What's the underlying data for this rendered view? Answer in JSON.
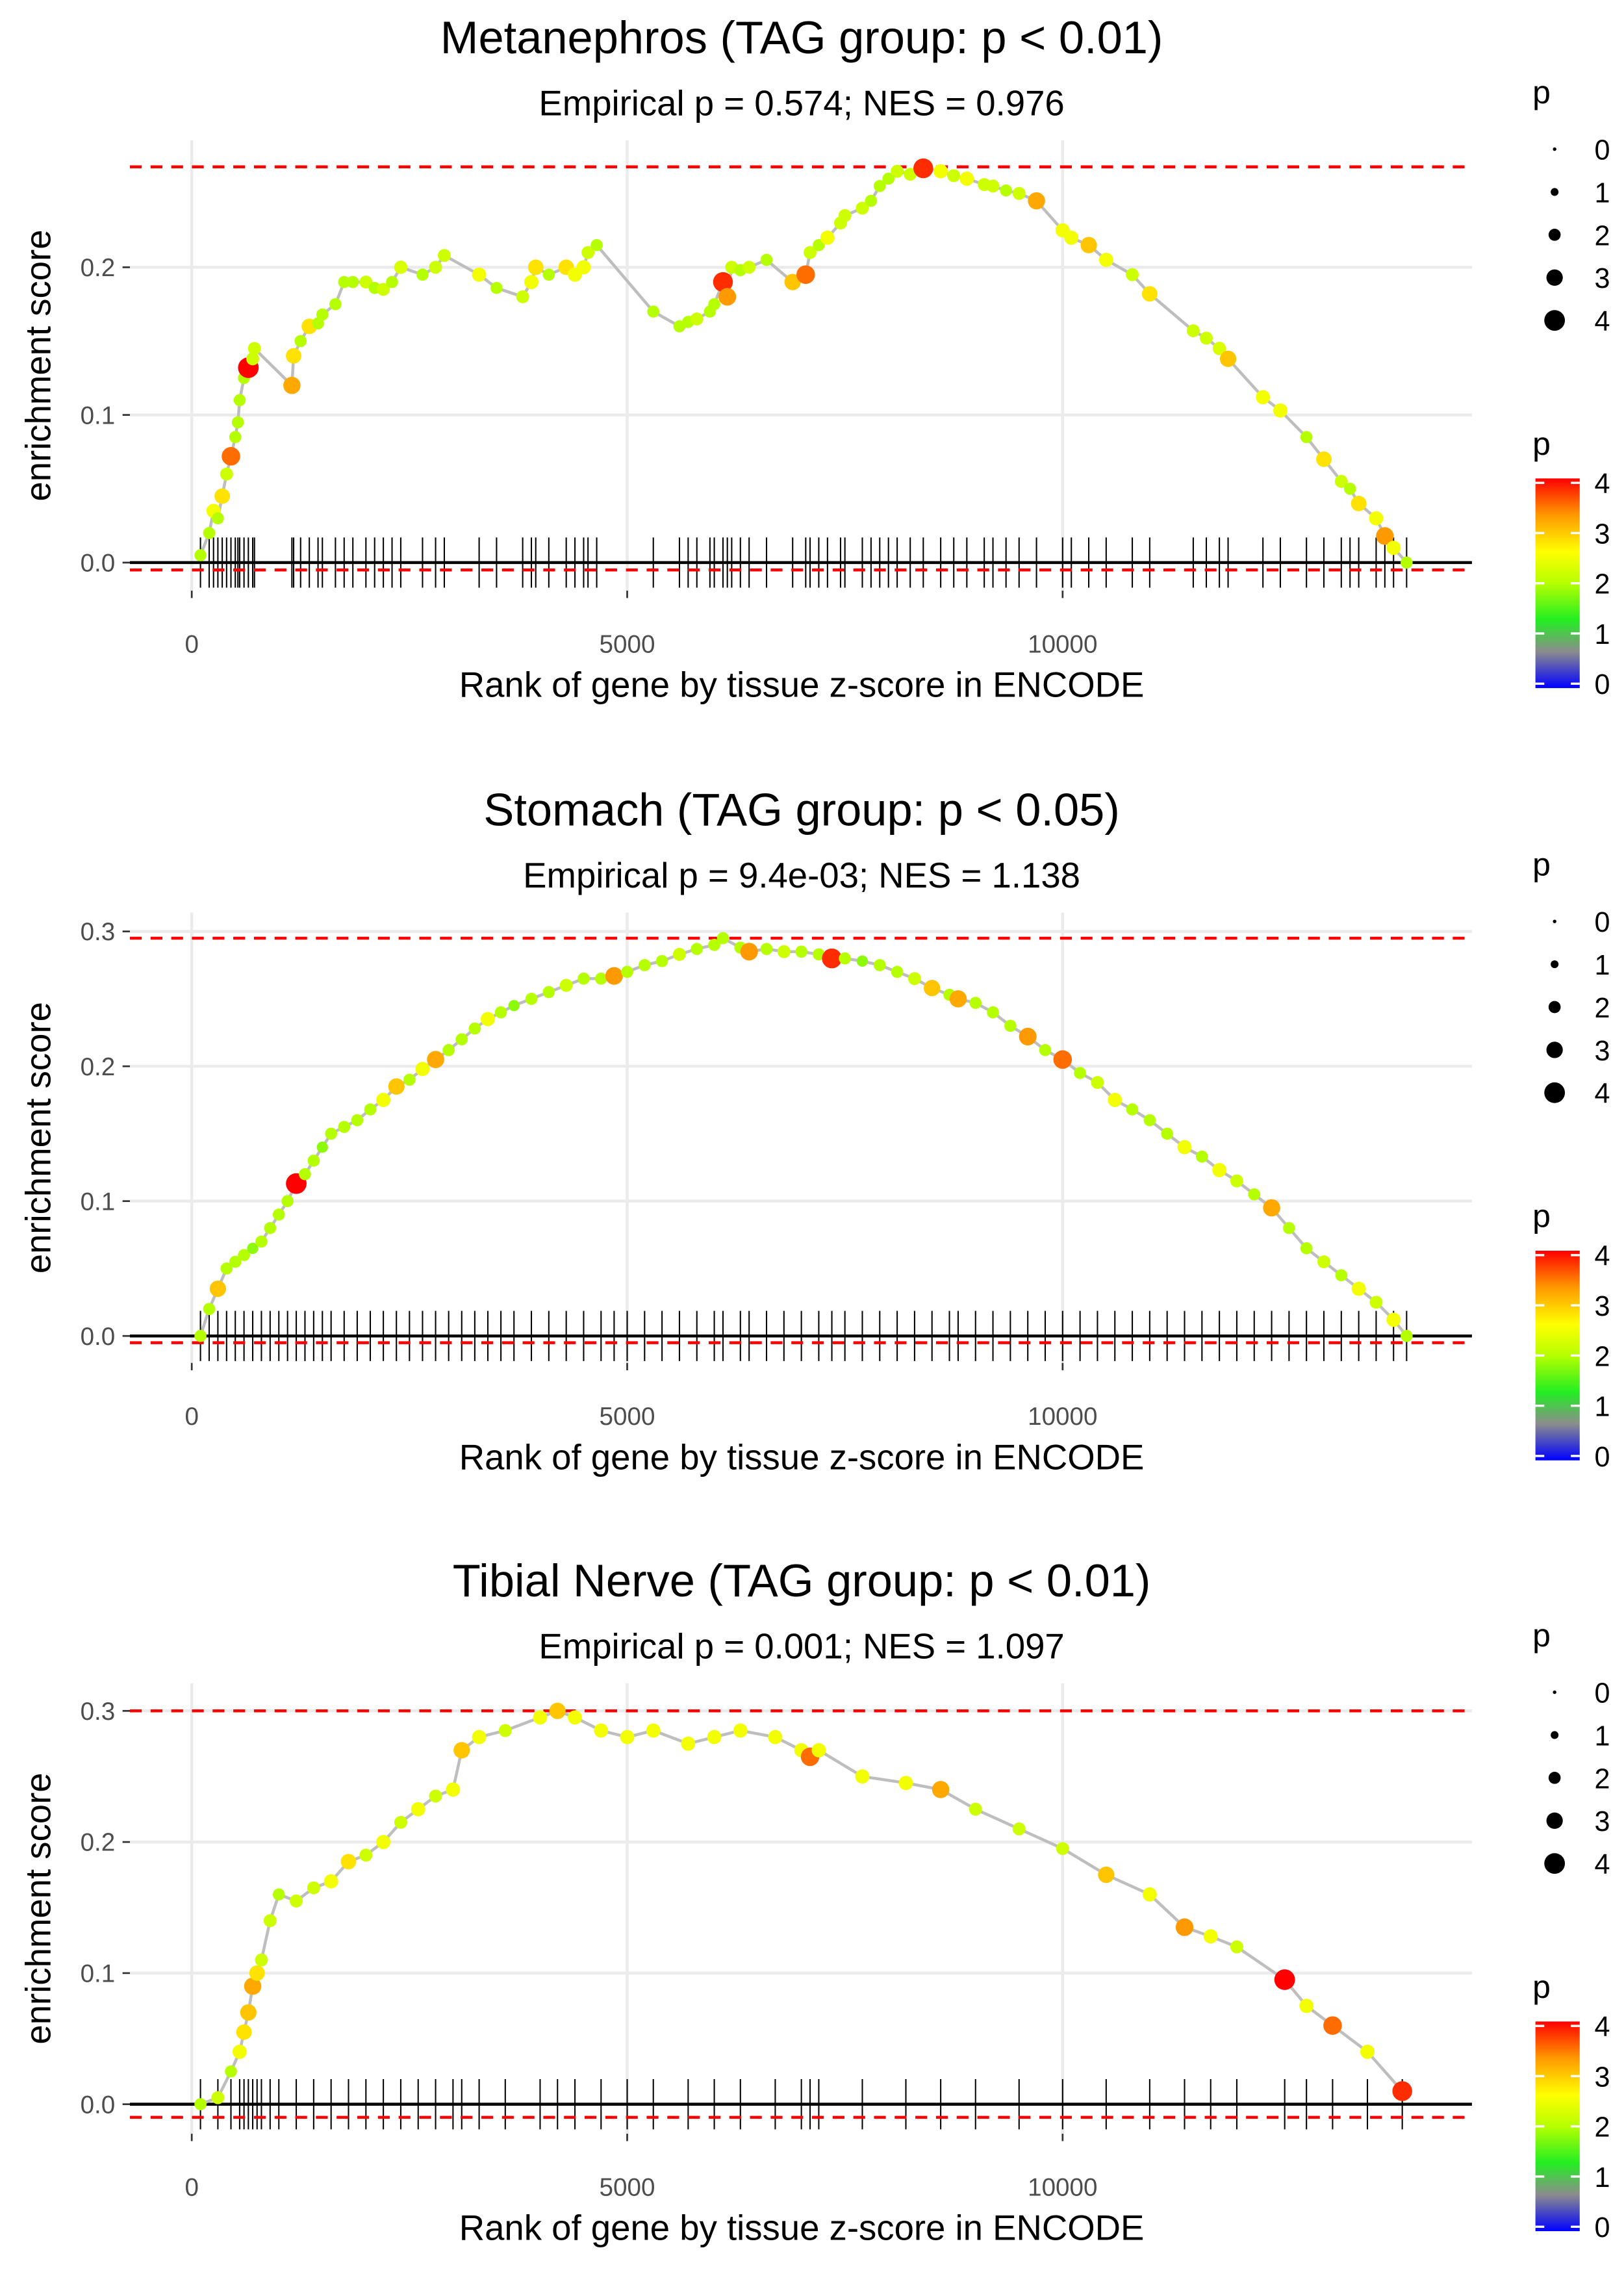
{
  "legend": {
    "size_title": "p",
    "size_values": [
      "0",
      "1",
      "2",
      "3",
      "4"
    ],
    "color_title": "p",
    "color_values": [
      "4",
      "3",
      "2",
      "1",
      "0"
    ],
    "color_stops": [
      [
        "0",
        "#0000ff"
      ],
      [
        "0.7",
        "#8c8c8c"
      ],
      [
        "1.3",
        "#22ee22"
      ],
      [
        "2.0",
        "#b6ff00"
      ],
      [
        "2.6",
        "#ffff00"
      ],
      [
        "3.3",
        "#ff9900"
      ],
      [
        "4",
        "#ff0000"
      ]
    ]
  },
  "colors": {
    "line": "#bebebe",
    "dashed": "#ff0000",
    "zero_line": "#000000",
    "rug": "#000000",
    "grid": "#ebebeb"
  },
  "chart_data": [
    {
      "type": "line",
      "title": "Metanephros (TAG group: p < 0.01)",
      "subtitle": "Empirical p = 0.574; NES = 0.976",
      "xlabel": "Rank of gene by tissue z-score in ENCODE",
      "ylabel": "enrichment score",
      "xticks": [
        "0",
        "5000",
        "10000"
      ],
      "yticks": [
        "0.0",
        "0.1",
        "0.2"
      ],
      "xlim": [
        -710,
        14700
      ],
      "ylim": [
        -0.019,
        0.286
      ],
      "max_es": 0.268,
      "min_es": -0.005,
      "points": [
        [
          100,
          0.005,
          2
        ],
        [
          200,
          0.02,
          2
        ],
        [
          250,
          0.035,
          2.5
        ],
        [
          300,
          0.03,
          2
        ],
        [
          350,
          0.045,
          2.8
        ],
        [
          400,
          0.06,
          2.2
        ],
        [
          450,
          0.072,
          3.5
        ],
        [
          500,
          0.085,
          2
        ],
        [
          530,
          0.095,
          2
        ],
        [
          550,
          0.11,
          2
        ],
        [
          600,
          0.125,
          2
        ],
        [
          650,
          0.132,
          4
        ],
        [
          700,
          0.138,
          2.2
        ],
        [
          720,
          0.145,
          2.2
        ],
        [
          1150,
          0.12,
          3.2
        ],
        [
          1170,
          0.14,
          2.8
        ],
        [
          1250,
          0.15,
          2
        ],
        [
          1350,
          0.16,
          2.8
        ],
        [
          1450,
          0.162,
          2
        ],
        [
          1500,
          0.168,
          2
        ],
        [
          1650,
          0.175,
          2
        ],
        [
          1750,
          0.19,
          2
        ],
        [
          1850,
          0.19,
          2
        ],
        [
          2000,
          0.19,
          2.2
        ],
        [
          2100,
          0.186,
          2
        ],
        [
          2200,
          0.185,
          2.2
        ],
        [
          2300,
          0.19,
          2
        ],
        [
          2400,
          0.2,
          2.3
        ],
        [
          2650,
          0.195,
          2
        ],
        [
          2800,
          0.2,
          2.2
        ],
        [
          2900,
          0.208,
          2.2
        ],
        [
          3300,
          0.195,
          2.5
        ],
        [
          3500,
          0.186,
          2
        ],
        [
          3800,
          0.18,
          2.2
        ],
        [
          3900,
          0.19,
          2.5
        ],
        [
          3950,
          0.2,
          2.8
        ],
        [
          4100,
          0.195,
          2
        ],
        [
          4300,
          0.2,
          2.8
        ],
        [
          4400,
          0.195,
          2.5
        ],
        [
          4500,
          0.2,
          2.5
        ],
        [
          4550,
          0.21,
          2.2
        ],
        [
          4650,
          0.215,
          2
        ],
        [
          5300,
          0.17,
          2
        ],
        [
          5600,
          0.16,
          2
        ],
        [
          5700,
          0.163,
          2
        ],
        [
          5800,
          0.165,
          2.2
        ],
        [
          5950,
          0.17,
          2
        ],
        [
          6000,
          0.175,
          2
        ],
        [
          6100,
          0.19,
          3.8
        ],
        [
          6150,
          0.18,
          3.3
        ],
        [
          6200,
          0.2,
          2.2
        ],
        [
          6300,
          0.198,
          2
        ],
        [
          6400,
          0.2,
          2.2
        ],
        [
          6600,
          0.205,
          2
        ],
        [
          6900,
          0.19,
          3
        ],
        [
          7050,
          0.195,
          3.5
        ],
        [
          7100,
          0.21,
          2.2
        ],
        [
          7200,
          0.215,
          2
        ],
        [
          7300,
          0.22,
          2.5
        ],
        [
          7450,
          0.23,
          2.2
        ],
        [
          7500,
          0.235,
          2.2
        ],
        [
          7700,
          0.24,
          2.2
        ],
        [
          7800,
          0.245,
          2
        ],
        [
          7900,
          0.255,
          2
        ],
        [
          8000,
          0.26,
          2
        ],
        [
          8100,
          0.265,
          2.2
        ],
        [
          8250,
          0.263,
          2.2
        ],
        [
          8400,
          0.267,
          3.8
        ],
        [
          8600,
          0.265,
          2.5
        ],
        [
          8750,
          0.262,
          2.2
        ],
        [
          8900,
          0.26,
          2.5
        ],
        [
          9100,
          0.256,
          2.2
        ],
        [
          9200,
          0.255,
          2.2
        ],
        [
          9350,
          0.252,
          2
        ],
        [
          9500,
          0.25,
          2.2
        ],
        [
          9700,
          0.245,
          3.2
        ],
        [
          10000,
          0.225,
          2.5
        ],
        [
          10100,
          0.22,
          2.5
        ],
        [
          10300,
          0.215,
          3
        ],
        [
          10500,
          0.205,
          2.5
        ],
        [
          10800,
          0.195,
          2.2
        ],
        [
          11000,
          0.182,
          2.8
        ],
        [
          11500,
          0.157,
          2.2
        ],
        [
          11650,
          0.152,
          2.2
        ],
        [
          11800,
          0.145,
          2.3
        ],
        [
          11900,
          0.138,
          3
        ],
        [
          12300,
          0.112,
          2.5
        ],
        [
          12500,
          0.103,
          2.5
        ],
        [
          12800,
          0.085,
          2
        ],
        [
          13000,
          0.07,
          2.8
        ],
        [
          13200,
          0.055,
          2.2
        ],
        [
          13300,
          0.05,
          2
        ],
        [
          13400,
          0.04,
          2.8
        ],
        [
          13600,
          0.03,
          2.5
        ],
        [
          13700,
          0.018,
          3.3
        ],
        [
          13800,
          0.01,
          2.5
        ],
        [
          13950,
          0,
          2
        ]
      ]
    },
    {
      "type": "line",
      "title": "Stomach (TAG group: p < 0.05)",
      "subtitle": "Empirical p = 9.4e-03; NES = 1.138",
      "xlabel": "Rank of gene by tissue z-score in ENCODE",
      "ylabel": "enrichment score",
      "xticks": [
        "0",
        "5000",
        "10000"
      ],
      "yticks": [
        "0.0",
        "0.1",
        "0.2",
        "0.3"
      ],
      "xlim": [
        -710,
        14700
      ],
      "ylim": [
        -0.02,
        0.314
      ],
      "max_es": 0.295,
      "min_es": -0.005,
      "points": [
        [
          100,
          0,
          2
        ],
        [
          200,
          0.02,
          2
        ],
        [
          300,
          0.035,
          3
        ],
        [
          400,
          0.05,
          2
        ],
        [
          500,
          0.055,
          2
        ],
        [
          600,
          0.06,
          2
        ],
        [
          700,
          0.065,
          1.8
        ],
        [
          800,
          0.07,
          2
        ],
        [
          900,
          0.08,
          2
        ],
        [
          1000,
          0.09,
          2
        ],
        [
          1100,
          0.1,
          2
        ],
        [
          1200,
          0.113,
          4
        ],
        [
          1300,
          0.12,
          2
        ],
        [
          1400,
          0.13,
          2
        ],
        [
          1500,
          0.14,
          1.8
        ],
        [
          1600,
          0.15,
          2
        ],
        [
          1750,
          0.155,
          2
        ],
        [
          1900,
          0.16,
          2
        ],
        [
          2050,
          0.168,
          2
        ],
        [
          2200,
          0.175,
          2.5
        ],
        [
          2350,
          0.185,
          3
        ],
        [
          2500,
          0.19,
          2
        ],
        [
          2650,
          0.198,
          2.5
        ],
        [
          2800,
          0.205,
          3.2
        ],
        [
          2950,
          0.212,
          2
        ],
        [
          3100,
          0.22,
          2
        ],
        [
          3250,
          0.228,
          2
        ],
        [
          3400,
          0.235,
          2.5
        ],
        [
          3550,
          0.24,
          2
        ],
        [
          3700,
          0.245,
          1.8
        ],
        [
          3900,
          0.25,
          2
        ],
        [
          4100,
          0.255,
          2
        ],
        [
          4300,
          0.26,
          2.2
        ],
        [
          4500,
          0.265,
          2
        ],
        [
          4700,
          0.265,
          2
        ],
        [
          4850,
          0.267,
          3.3
        ],
        [
          5000,
          0.27,
          2
        ],
        [
          5200,
          0.275,
          2
        ],
        [
          5400,
          0.278,
          2
        ],
        [
          5600,
          0.283,
          2.2
        ],
        [
          5800,
          0.287,
          2
        ],
        [
          6000,
          0.29,
          2
        ],
        [
          6100,
          0.295,
          2
        ],
        [
          6300,
          0.288,
          2
        ],
        [
          6400,
          0.285,
          3.3
        ],
        [
          6600,
          0.287,
          2
        ],
        [
          6800,
          0.285,
          2.2
        ],
        [
          7000,
          0.285,
          2
        ],
        [
          7200,
          0.283,
          2
        ],
        [
          7350,
          0.28,
          3.8
        ],
        [
          7500,
          0.28,
          2
        ],
        [
          7700,
          0.278,
          1.8
        ],
        [
          7900,
          0.275,
          2
        ],
        [
          8100,
          0.27,
          2
        ],
        [
          8300,
          0.265,
          2.2
        ],
        [
          8500,
          0.258,
          3
        ],
        [
          8700,
          0.253,
          2
        ],
        [
          8800,
          0.25,
          3.2
        ],
        [
          9000,
          0.247,
          2
        ],
        [
          9200,
          0.24,
          2
        ],
        [
          9400,
          0.23,
          2
        ],
        [
          9600,
          0.222,
          3.3
        ],
        [
          9800,
          0.212,
          2
        ],
        [
          10000,
          0.205,
          3.5
        ],
        [
          10200,
          0.195,
          2
        ],
        [
          10400,
          0.188,
          2.2
        ],
        [
          10600,
          0.175,
          2.5
        ],
        [
          10800,
          0.168,
          2
        ],
        [
          11000,
          0.16,
          2
        ],
        [
          11200,
          0.15,
          2
        ],
        [
          11400,
          0.14,
          2.5
        ],
        [
          11600,
          0.133,
          2
        ],
        [
          11800,
          0.123,
          2.5
        ],
        [
          12000,
          0.115,
          2.2
        ],
        [
          12200,
          0.105,
          2
        ],
        [
          12400,
          0.095,
          3.2
        ],
        [
          12600,
          0.08,
          2
        ],
        [
          12800,
          0.065,
          2
        ],
        [
          13000,
          0.055,
          2.2
        ],
        [
          13200,
          0.045,
          2
        ],
        [
          13400,
          0.035,
          2.5
        ],
        [
          13600,
          0.025,
          2.2
        ],
        [
          13800,
          0.012,
          2.5
        ],
        [
          13950,
          0,
          2
        ]
      ]
    },
    {
      "type": "line",
      "title": "Tibial Nerve (TAG group: p < 0.01)",
      "subtitle": "Empirical p = 0.001; NES = 1.097",
      "xlabel": "Rank of gene by tissue z-score in ENCODE",
      "ylabel": "enrichment score",
      "xticks": [
        "0",
        "5000",
        "10000"
      ],
      "yticks": [
        "0.0",
        "0.1",
        "0.2",
        "0.3"
      ],
      "xlim": [
        -710,
        14700
      ],
      "ylim": [
        -0.0225,
        0.321
      ],
      "max_es": 0.3,
      "min_es": -0.01,
      "points": [
        [
          100,
          0,
          2
        ],
        [
          300,
          0.005,
          2.2
        ],
        [
          450,
          0.025,
          2
        ],
        [
          550,
          0.04,
          2.5
        ],
        [
          600,
          0.055,
          2.8
        ],
        [
          650,
          0.07,
          3
        ],
        [
          700,
          0.09,
          3.2
        ],
        [
          750,
          0.1,
          2.8
        ],
        [
          800,
          0.11,
          2.2
        ],
        [
          900,
          0.14,
          2.2
        ],
        [
          1000,
          0.16,
          2
        ],
        [
          1200,
          0.155,
          2.2
        ],
        [
          1400,
          0.165,
          2.2
        ],
        [
          1600,
          0.17,
          2.5
        ],
        [
          1800,
          0.185,
          2.8
        ],
        [
          2000,
          0.19,
          2.2
        ],
        [
          2200,
          0.2,
          2.5
        ],
        [
          2400,
          0.215,
          2.2
        ],
        [
          2600,
          0.225,
          2.5
        ],
        [
          2800,
          0.235,
          2.2
        ],
        [
          3000,
          0.24,
          2.5
        ],
        [
          3100,
          0.27,
          3
        ],
        [
          3300,
          0.28,
          2.5
        ],
        [
          3600,
          0.285,
          2.2
        ],
        [
          4000,
          0.295,
          2.5
        ],
        [
          4200,
          0.3,
          3
        ],
        [
          4400,
          0.295,
          2.5
        ],
        [
          4700,
          0.285,
          2.5
        ],
        [
          5000,
          0.28,
          2.5
        ],
        [
          5300,
          0.285,
          2.5
        ],
        [
          5700,
          0.275,
          2.5
        ],
        [
          6000,
          0.28,
          2.5
        ],
        [
          6300,
          0.285,
          2.5
        ],
        [
          6700,
          0.28,
          2.5
        ],
        [
          7000,
          0.27,
          2.5
        ],
        [
          7100,
          0.265,
          3.5
        ],
        [
          7200,
          0.27,
          2.5
        ],
        [
          7700,
          0.25,
          2.5
        ],
        [
          8200,
          0.245,
          2.5
        ],
        [
          8600,
          0.24,
          3.2
        ],
        [
          9000,
          0.225,
          2.2
        ],
        [
          9500,
          0.21,
          2.2
        ],
        [
          10000,
          0.195,
          2.2
        ],
        [
          10500,
          0.175,
          3
        ],
        [
          11000,
          0.16,
          2.5
        ],
        [
          11400,
          0.135,
          3.3
        ],
        [
          11700,
          0.128,
          2.5
        ],
        [
          12000,
          0.12,
          2.2
        ],
        [
          12550,
          0.095,
          4
        ],
        [
          12800,
          0.075,
          2.5
        ],
        [
          13100,
          0.06,
          3.5
        ],
        [
          13500,
          0.04,
          2.5
        ],
        [
          13900,
          0.01,
          3.8
        ]
      ]
    }
  ]
}
